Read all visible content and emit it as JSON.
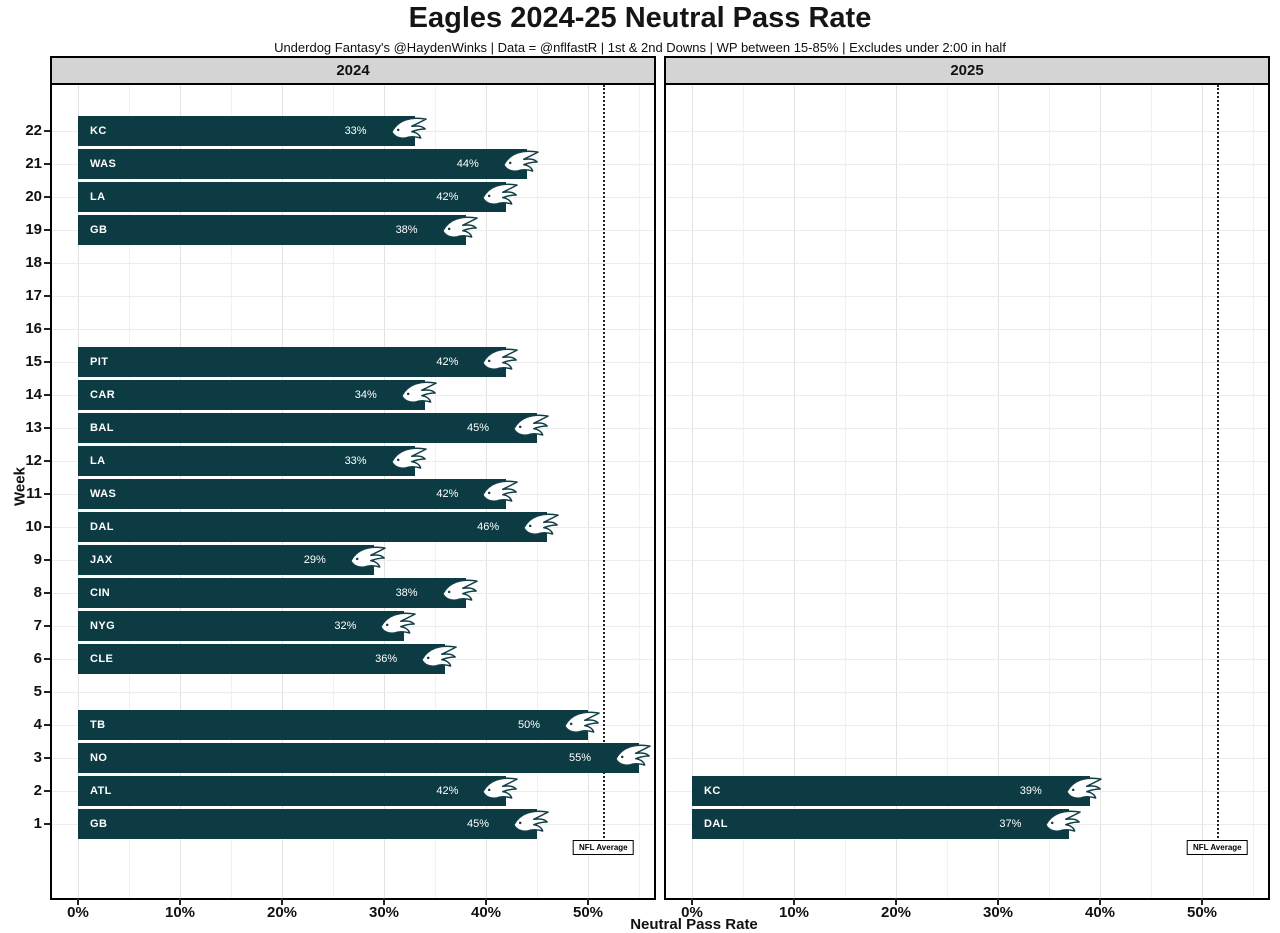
{
  "title": "Eagles 2024-25 Neutral Pass Rate",
  "subtitle": "Underdog Fantasy's @HaydenWinks | Data = @nflfastR | 1st & 2nd Downs | WP between 15-85% | Excludes under 2:00 in half",
  "axes": {
    "xlabel": "Neutral Pass Rate",
    "ylabel": "Week"
  },
  "colors": {
    "bar": "#0d3b43",
    "bar_text": "#ffffff",
    "panel_header_bg": "#d4d4d4",
    "logo_outline": "#123f47",
    "nfl_line": "#222222"
  },
  "chart_data": {
    "type": "bar",
    "orientation": "horizontal",
    "title": "Eagles 2024-25 Neutral Pass Rate",
    "xlabel": "Neutral Pass Rate",
    "ylabel": "Week",
    "x_ticks": [
      0,
      10,
      20,
      30,
      40,
      50
    ],
    "x_tick_labels": [
      "0%",
      "10%",
      "20%",
      "30%",
      "40%",
      "50%"
    ],
    "xlim": [
      0,
      56.5
    ],
    "y_ticks": [
      1,
      2,
      3,
      4,
      5,
      6,
      7,
      8,
      9,
      10,
      11,
      12,
      13,
      14,
      15,
      16,
      17,
      18,
      19,
      20,
      21,
      22
    ],
    "nfl_average": 51.5,
    "nfl_average_label": "NFL Average",
    "panels": [
      {
        "label": "2024",
        "bars": [
          {
            "week": 22,
            "team": "KC",
            "value": 33,
            "label": "33%"
          },
          {
            "week": 21,
            "team": "WAS",
            "value": 44,
            "label": "44%"
          },
          {
            "week": 20,
            "team": "LA",
            "value": 42,
            "label": "42%"
          },
          {
            "week": 19,
            "team": "GB",
            "value": 38,
            "label": "38%"
          },
          {
            "week": 15,
            "team": "PIT",
            "value": 42,
            "label": "42%"
          },
          {
            "week": 14,
            "team": "CAR",
            "value": 34,
            "label": "34%"
          },
          {
            "week": 13,
            "team": "BAL",
            "value": 45,
            "label": "45%"
          },
          {
            "week": 12,
            "team": "LA",
            "value": 33,
            "label": "33%"
          },
          {
            "week": 11,
            "team": "WAS",
            "value": 42,
            "label": "42%"
          },
          {
            "week": 10,
            "team": "DAL",
            "value": 46,
            "label": "46%"
          },
          {
            "week": 9,
            "team": "JAX",
            "value": 29,
            "label": "29%"
          },
          {
            "week": 8,
            "team": "CIN",
            "value": 38,
            "label": "38%"
          },
          {
            "week": 7,
            "team": "NYG",
            "value": 32,
            "label": "32%"
          },
          {
            "week": 6,
            "team": "CLE",
            "value": 36,
            "label": "36%"
          },
          {
            "week": 4,
            "team": "TB",
            "value": 50,
            "label": "50%"
          },
          {
            "week": 3,
            "team": "NO",
            "value": 55,
            "label": "55%"
          },
          {
            "week": 2,
            "team": "ATL",
            "value": 42,
            "label": "42%"
          },
          {
            "week": 1,
            "team": "GB",
            "value": 45,
            "label": "45%"
          }
        ]
      },
      {
        "label": "2025",
        "bars": [
          {
            "week": 2,
            "team": "KC",
            "value": 39,
            "label": "39%"
          },
          {
            "week": 1,
            "team": "DAL",
            "value": 37,
            "label": "37%"
          }
        ]
      }
    ]
  }
}
